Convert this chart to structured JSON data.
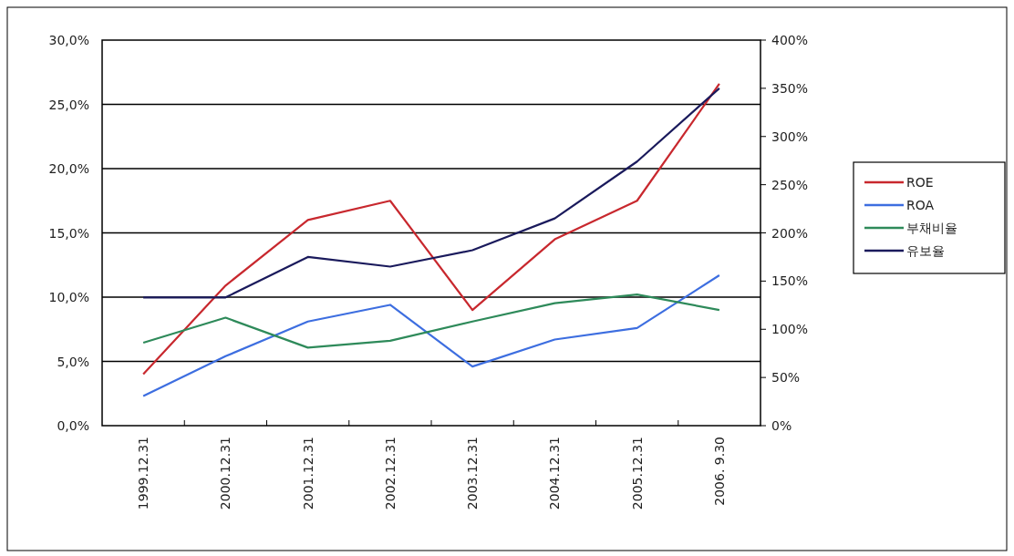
{
  "chart_data": {
    "type": "line",
    "categories": [
      "1999.12.31",
      "2000.12.31",
      "2001.12.31",
      "2002.12.31",
      "2003.12.31",
      "2004.12.31",
      "2005.12.31",
      "2006. 9.30"
    ],
    "series": [
      {
        "name": "ROE",
        "color": "#c8282e",
        "values": [
          4.0,
          10.9,
          16.0,
          17.5,
          9.0,
          14.5,
          17.5,
          26.6
        ]
      },
      {
        "name": "ROA",
        "color": "#3d6ee0",
        "values": [
          2.3,
          5.4,
          8.1,
          9.4,
          4.6,
          6.7,
          7.6,
          11.7
        ]
      },
      {
        "name": "부채비율",
        "color": "#2e8a5a",
        "axis": "y2",
        "values": [
          86,
          112,
          81,
          88,
          108,
          127,
          136,
          120
        ]
      },
      {
        "name": "유보율",
        "color": "#1a1a5c",
        "axis": "y2",
        "values": [
          133,
          133,
          175,
          165,
          182,
          215,
          274,
          350
        ]
      }
    ],
    "ylim": [
      0,
      30
    ],
    "yticks": [
      {
        "value": 0,
        "label": "0,0%"
      },
      {
        "value": 5,
        "label": "5,0%"
      },
      {
        "value": 10,
        "label": "10,0%"
      },
      {
        "value": 15,
        "label": "15,0%"
      },
      {
        "value": 20,
        "label": "20,0%"
      },
      {
        "value": 25,
        "label": "25,0%"
      },
      {
        "value": 30,
        "label": "30,0%"
      }
    ],
    "y2lim": [
      0,
      400
    ],
    "y2ticks": [
      {
        "value": 0,
        "label": "0%"
      },
      {
        "value": 50,
        "label": "50%"
      },
      {
        "value": 100,
        "label": "100%"
      },
      {
        "value": 150,
        "label": "150%"
      },
      {
        "value": 200,
        "label": "200%"
      },
      {
        "value": 250,
        "label": "250%"
      },
      {
        "value": 300,
        "label": "300%"
      },
      {
        "value": 350,
        "label": "350%"
      },
      {
        "value": 400,
        "label": "400%"
      }
    ],
    "grid": "y",
    "legend": "right",
    "marker": "none",
    "line_style": "solid"
  }
}
